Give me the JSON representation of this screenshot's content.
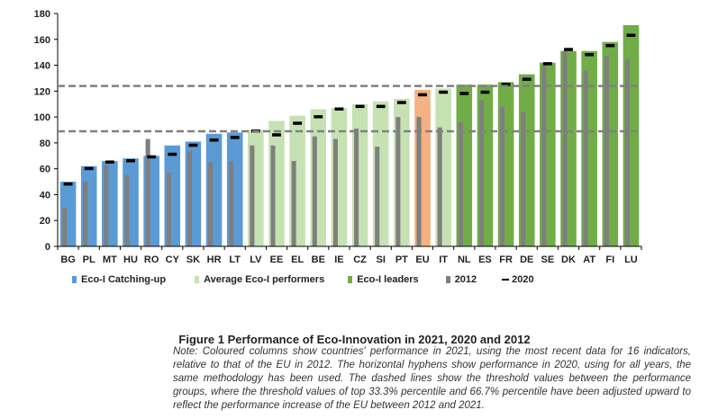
{
  "chart_data": {
    "type": "bar",
    "categories": [
      "BG",
      "PL",
      "MT",
      "HU",
      "RO",
      "CY",
      "SK",
      "HR",
      "LT",
      "LV",
      "EE",
      "EL",
      "BE",
      "IE",
      "CZ",
      "SI",
      "PT",
      "EU",
      "IT",
      "NL",
      "ES",
      "FR",
      "DE",
      "SE",
      "DK",
      "AT",
      "FI",
      "LU"
    ],
    "groups": [
      "catching",
      "catching",
      "catching",
      "catching",
      "catching",
      "catching",
      "catching",
      "catching",
      "catching",
      "average",
      "average",
      "average",
      "average",
      "average",
      "average",
      "average",
      "average",
      "eu",
      "average",
      "leaders",
      "leaders",
      "leaders",
      "leaders",
      "leaders",
      "leaders",
      "leaders",
      "leaders",
      "leaders"
    ],
    "series": [
      {
        "name": "2021",
        "values": [
          50,
          62,
          66,
          68,
          70,
          78,
          81,
          87,
          88,
          90,
          97,
          101,
          106,
          107,
          110,
          112,
          114,
          121,
          122,
          125,
          125,
          127,
          133,
          142,
          151,
          151,
          158,
          171
        ]
      },
      {
        "name": "2012",
        "values": [
          30,
          50,
          63,
          55,
          83,
          57,
          74,
          65,
          66,
          78,
          78,
          66,
          85,
          83,
          91,
          77,
          100,
          100,
          92,
          96,
          113,
          108,
          104,
          140,
          151,
          136,
          147,
          145
        ]
      },
      {
        "name": "2020",
        "values": [
          48,
          60,
          65,
          66,
          69,
          71,
          78,
          82,
          84,
          89,
          86,
          95,
          100,
          106,
          108,
          108,
          111,
          117,
          119,
          118,
          119,
          125,
          129,
          141,
          152,
          148,
          155,
          163
        ]
      }
    ],
    "thresholds": [
      89,
      124
    ],
    "ylim": [
      0,
      180
    ],
    "yticks": [
      "0",
      "20",
      "40",
      "60",
      "80",
      "100",
      "120",
      "140",
      "160",
      "180"
    ],
    "colors": {
      "catching": "#5b9bd5",
      "average": "#c6e2b3",
      "eu": "#f4b183",
      "leaders": "#70ad47",
      "bar2012": "#7f7f7f",
      "marker2020": "#000000",
      "threshold": "#808080"
    },
    "legend": {
      "catching": "Eco-I Catching-up",
      "average": "Average Eco-I performers",
      "leaders": "Eco-I leaders",
      "y2012": "2012",
      "y2020": "2020"
    }
  },
  "caption": "Figure 1 Performance of Eco-Innovation in 2021, 2020 and 2012",
  "note": "Note: Coloured columns show countries' performance in 2021, using the most recent data for 16 indicators, relative to that of the EU in 2012. The horizontal hyphens show performance in 2020, using for all years, the same methodology has been used. The dashed lines show the threshold values between the performance groups, where the threshold values of top 33.3% percentile and 66.7% percentile have been adjusted upward to reflect the performance increase of the EU between 2012 and 2021."
}
